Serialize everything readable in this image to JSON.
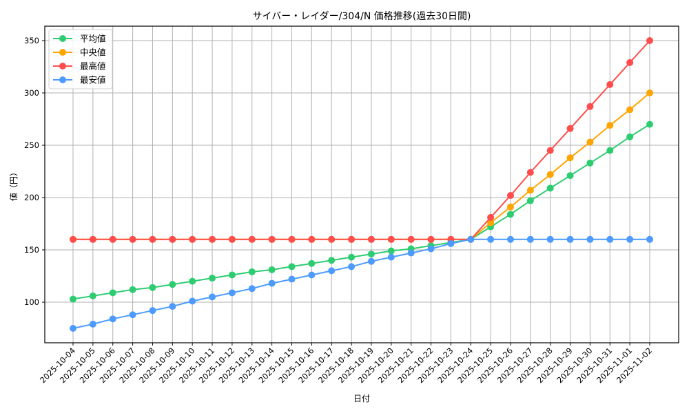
{
  "chart_data": {
    "type": "line",
    "title": "サイバー・レイダー/304/N 価格推移(過去30日間)",
    "xlabel": "日付",
    "ylabel": "値（円）",
    "ylim": [
      61,
      364
    ],
    "yticks": [
      100,
      150,
      200,
      250,
      300,
      350
    ],
    "grid": true,
    "legend_position": "upper left",
    "x": [
      "2025-10-04",
      "2025-10-05",
      "2025-10-06",
      "2025-10-07",
      "2025-10-08",
      "2025-10-09",
      "2025-10-10",
      "2025-10-11",
      "2025-10-12",
      "2025-10-13",
      "2025-10-14",
      "2025-10-15",
      "2025-10-16",
      "2025-10-17",
      "2025-10-18",
      "2025-10-19",
      "2025-10-20",
      "2025-10-21",
      "2025-10-22",
      "2025-10-23",
      "2025-10-24",
      "2025-10-25",
      "2025-10-26",
      "2025-10-27",
      "2025-10-28",
      "2025-10-29",
      "2025-10-30",
      "2025-10-31",
      "2025-11-01",
      "2025-11-02"
    ],
    "series": [
      {
        "name": "平均値",
        "color": "#2ecc71",
        "values": [
          103,
          106,
          109,
          112,
          114,
          117,
          120,
          123,
          126,
          129,
          131,
          134,
          137,
          140,
          143,
          146,
          149,
          151,
          154,
          157,
          160,
          172,
          184,
          197,
          209,
          221,
          233,
          245,
          258,
          270
        ]
      },
      {
        "name": "中央値",
        "color": "#ffa500",
        "values": [
          160,
          160,
          160,
          160,
          160,
          160,
          160,
          160,
          160,
          160,
          160,
          160,
          160,
          160,
          160,
          160,
          160,
          160,
          160,
          160,
          160,
          176,
          191,
          207,
          222,
          238,
          253,
          269,
          284,
          300
        ]
      },
      {
        "name": "最高値",
        "color": "#ff4d4d",
        "values": [
          160,
          160,
          160,
          160,
          160,
          160,
          160,
          160,
          160,
          160,
          160,
          160,
          160,
          160,
          160,
          160,
          160,
          160,
          160,
          160,
          160,
          181,
          202,
          224,
          245,
          266,
          287,
          308,
          329,
          350
        ]
      },
      {
        "name": "最安値",
        "color": "#4d9bff",
        "values": [
          75,
          79,
          84,
          88,
          92,
          96,
          101,
          105,
          109,
          113,
          118,
          122,
          126,
          130,
          134,
          139,
          143,
          147,
          151,
          156,
          160,
          160,
          160,
          160,
          160,
          160,
          160,
          160,
          160,
          160
        ]
      }
    ]
  }
}
